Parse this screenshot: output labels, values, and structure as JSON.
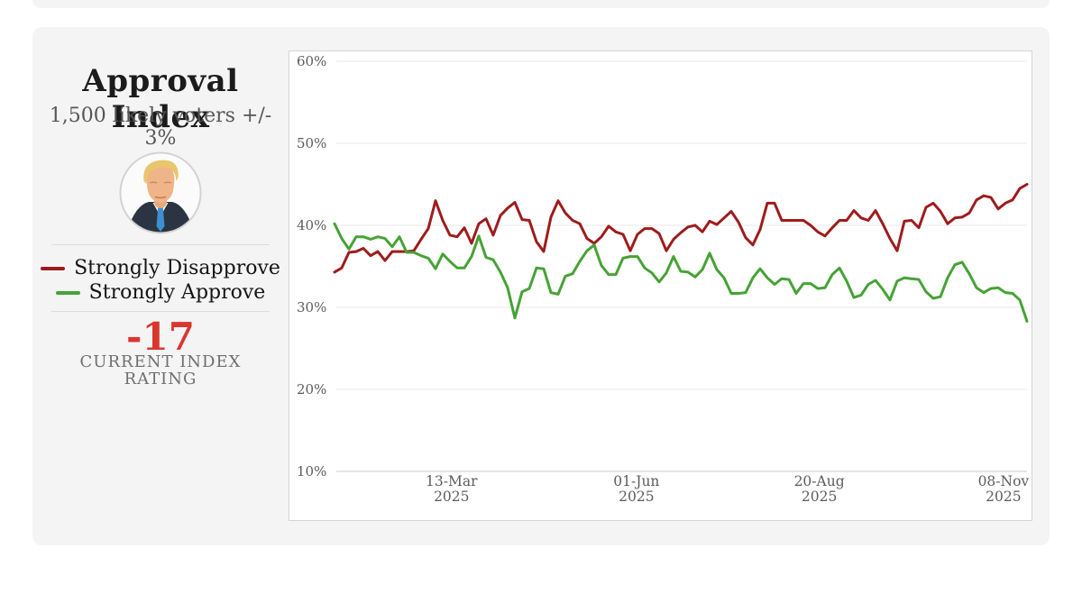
{
  "page": {
    "bg": "#ffffff",
    "card_bg": "#f4f4f4"
  },
  "panel": {
    "title": "Approval Index",
    "subtitle": "1,500 likely voters +/- 3%",
    "photo": "trump-portrait",
    "legend": [
      {
        "label": "Strongly Disapprove",
        "color": "#9e1c1c"
      },
      {
        "label": "Strongly Approve",
        "color": "#45a335"
      }
    ],
    "rating_value": "-17",
    "rating_label_line1": "CURRENT INDEX",
    "rating_label_line2": "RATING",
    "rating_color": "#d9372e"
  },
  "chart_data": {
    "type": "line",
    "title": "",
    "xlabel": "",
    "ylabel": "",
    "ylim": [
      10,
      60
    ],
    "grid": true,
    "legend_position": "left-panel",
    "y_ticks": [
      {
        "value": 60,
        "label": "60%"
      },
      {
        "value": 50,
        "label": "50%"
      },
      {
        "value": 40,
        "label": "40%"
      },
      {
        "value": 30,
        "label": "30%"
      },
      {
        "value": 20,
        "label": "20%"
      },
      {
        "value": 10,
        "label": "10%"
      }
    ],
    "x_ticks": [
      {
        "label": "13-Mar",
        "year": "2025",
        "pos": 0.169
      },
      {
        "label": "01-Jun",
        "year": "2025",
        "pos": 0.436
      },
      {
        "label": "20-Aug",
        "year": "2025",
        "pos": 0.7
      },
      {
        "label": "08-Nov",
        "year": "2025",
        "pos": 0.966
      }
    ],
    "points_evenly_spaced_across_x": true,
    "series": [
      {
        "name": "Strongly Disapprove",
        "color": "#9e1c1c",
        "values": [
          34.3,
          34.8,
          36.7,
          36.8,
          37.2,
          36.3,
          36.8,
          35.7,
          36.8,
          36.8,
          36.8,
          36.9,
          38.3,
          39.6,
          43.0,
          40.6,
          38.8,
          38.6,
          39.7,
          37.8,
          40.2,
          40.8,
          38.8,
          41.2,
          42.1,
          42.8,
          40.7,
          40.6,
          38.0,
          36.8,
          41.0,
          43.0,
          41.5,
          40.6,
          40.2,
          38.4,
          37.8,
          38.6,
          39.9,
          39.2,
          38.9,
          36.9,
          38.9,
          39.6,
          39.6,
          39.0,
          36.9,
          38.3,
          39.1,
          39.8,
          40.0,
          39.2,
          40.5,
          40.1,
          40.9,
          41.7,
          40.4,
          38.5,
          37.6,
          39.5,
          42.7,
          42.7,
          40.6,
          40.6,
          40.6,
          40.6,
          40.0,
          39.2,
          38.7,
          39.7,
          40.6,
          40.6,
          41.8,
          40.9,
          40.6,
          41.8,
          40.2,
          38.4,
          36.9,
          40.5,
          40.6,
          39.7,
          42.2,
          42.7,
          41.7,
          40.2,
          40.9,
          41.0,
          41.5,
          43.1,
          43.6,
          43.4,
          42.0,
          42.7,
          43.1,
          44.5,
          45.0
        ]
      },
      {
        "name": "Strongly Approve",
        "color": "#45a335",
        "values": [
          40.2,
          38.4,
          37.1,
          38.6,
          38.6,
          38.3,
          38.6,
          38.4,
          37.4,
          38.6,
          36.7,
          36.7,
          36.3,
          36.0,
          34.7,
          36.5,
          35.6,
          34.8,
          34.8,
          36.2,
          38.7,
          36.1,
          35.8,
          34.3,
          32.4,
          28.7,
          31.9,
          32.3,
          34.8,
          34.7,
          31.8,
          31.6,
          33.8,
          34.1,
          35.6,
          36.9,
          37.6,
          35.1,
          34.0,
          34.0,
          36.0,
          36.2,
          36.2,
          34.8,
          34.2,
          33.1,
          34.2,
          36.2,
          34.4,
          34.3,
          33.7,
          34.6,
          36.6,
          34.6,
          33.6,
          31.7,
          31.7,
          31.8,
          33.6,
          34.7,
          33.6,
          32.8,
          33.5,
          33.4,
          31.7,
          32.9,
          32.9,
          32.3,
          32.4,
          34.0,
          34.8,
          33.2,
          31.2,
          31.5,
          32.8,
          33.3,
          32.2,
          30.9,
          33.2,
          33.6,
          33.5,
          33.4,
          31.9,
          31.1,
          31.3,
          33.6,
          35.2,
          35.5,
          34.1,
          32.4,
          31.8,
          32.3,
          32.4,
          31.8,
          31.7,
          30.9,
          28.3
        ]
      }
    ],
    "colors": {
      "grid": "#e7e7e7",
      "baseline": "#c7cbdb",
      "tick_text": "#5c5c5c"
    }
  }
}
